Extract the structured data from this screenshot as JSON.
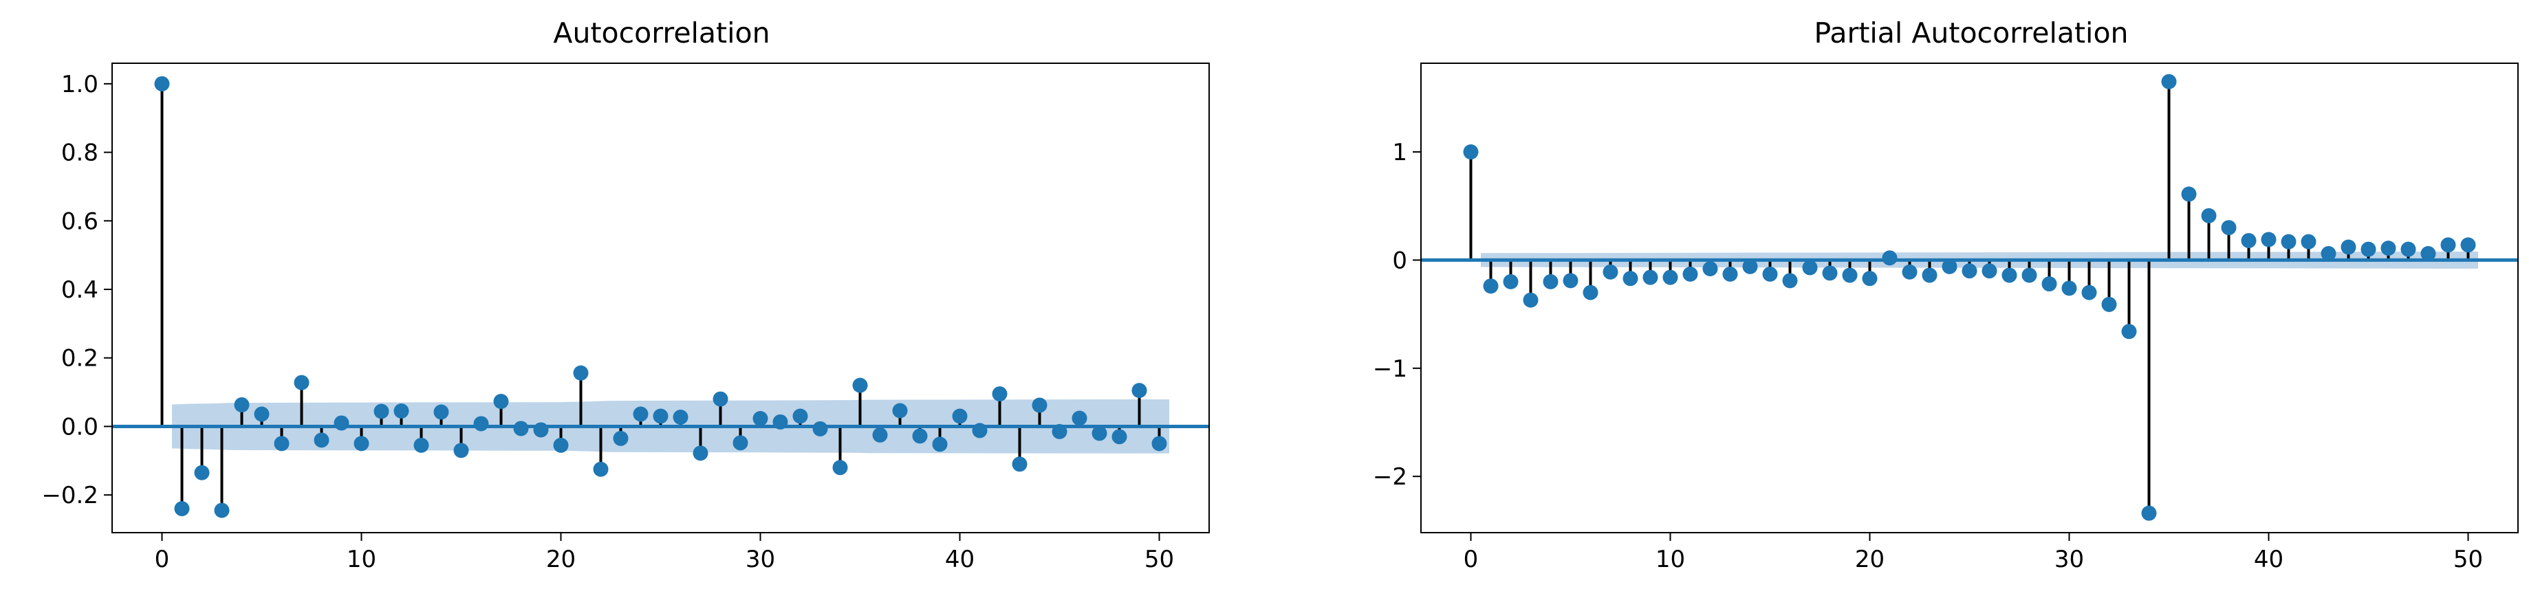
{
  "chart_data": [
    {
      "type": "stem",
      "title": "Autocorrelation",
      "xlabel": "",
      "ylabel": "",
      "xlim": [
        -2.5,
        52.5
      ],
      "ylim": [
        -0.31,
        1.06
      ],
      "xticks": [
        0,
        10,
        20,
        30,
        40,
        50
      ],
      "xtick_labels": [
        "0",
        "10",
        "20",
        "30",
        "40",
        "50"
      ],
      "yticks": [
        -0.2,
        0.0,
        0.2,
        0.4,
        0.6,
        0.8,
        1.0
      ],
      "ytick_labels": [
        "−0.2",
        "0.0",
        "0.2",
        "0.4",
        "0.6",
        "0.8",
        "1.0"
      ],
      "x": [
        0,
        1,
        2,
        3,
        4,
        5,
        6,
        7,
        8,
        9,
        10,
        11,
        12,
        13,
        14,
        15,
        16,
        17,
        18,
        19,
        20,
        21,
        22,
        23,
        24,
        25,
        26,
        27,
        28,
        29,
        30,
        31,
        32,
        33,
        34,
        35,
        36,
        37,
        38,
        39,
        40,
        41,
        42,
        43,
        44,
        45,
        46,
        47,
        48,
        49,
        50
      ],
      "values": [
        1.0,
        -0.24,
        -0.135,
        -0.245,
        0.063,
        0.036,
        -0.05,
        0.128,
        -0.04,
        0.01,
        -0.05,
        0.044,
        0.045,
        -0.055,
        0.042,
        -0.07,
        0.008,
        0.073,
        -0.006,
        -0.01,
        -0.055,
        0.156,
        -0.125,
        -0.035,
        0.036,
        0.03,
        0.027,
        -0.078,
        0.08,
        -0.048,
        0.023,
        0.013,
        0.03,
        -0.007,
        -0.12,
        0.12,
        -0.025,
        0.046,
        -0.028,
        -0.052,
        0.03,
        -0.012,
        0.095,
        -0.11,
        0.062,
        -0.015,
        0.024,
        -0.02,
        -0.03,
        0.105,
        -0.05
      ],
      "confidence_band": {
        "x": [
          0.5,
          1.5,
          2.5,
          3.5,
          10,
          20,
          21.5,
          22.5,
          30,
          34.5,
          35.5,
          50.5
        ],
        "upper": [
          0.064,
          0.066,
          0.067,
          0.069,
          0.07,
          0.071,
          0.073,
          0.075,
          0.076,
          0.077,
          0.078,
          0.079
        ],
        "lower": [
          -0.064,
          -0.066,
          -0.067,
          -0.069,
          -0.07,
          -0.071,
          -0.073,
          -0.075,
          -0.076,
          -0.077,
          -0.078,
          -0.079
        ]
      },
      "color": "#1f77b4",
      "stem_color": "#000000",
      "band_color": "#a7c6e2"
    },
    {
      "type": "stem",
      "title": "Partial Autocorrelation",
      "xlabel": "",
      "ylabel": "",
      "xlim": [
        -2.5,
        52.5
      ],
      "ylim": [
        -2.52,
        1.82
      ],
      "xticks": [
        0,
        10,
        20,
        30,
        40,
        50
      ],
      "xtick_labels": [
        "0",
        "10",
        "20",
        "30",
        "40",
        "50"
      ],
      "yticks": [
        -2,
        -1,
        0,
        1
      ],
      "ytick_labels": [
        "−2",
        "−1",
        "0",
        "1"
      ],
      "x": [
        0,
        1,
        2,
        3,
        4,
        5,
        6,
        7,
        8,
        9,
        10,
        11,
        12,
        13,
        14,
        15,
        16,
        17,
        18,
        19,
        20,
        21,
        22,
        23,
        24,
        25,
        26,
        27,
        28,
        29,
        30,
        31,
        32,
        33,
        34,
        35,
        36,
        37,
        38,
        39,
        40,
        41,
        42,
        43,
        44,
        45,
        46,
        47,
        48,
        49,
        50
      ],
      "values": [
        1.0,
        -0.24,
        -0.2,
        -0.37,
        -0.2,
        -0.19,
        -0.3,
        -0.11,
        -0.17,
        -0.16,
        -0.16,
        -0.13,
        -0.08,
        -0.13,
        -0.06,
        -0.13,
        -0.19,
        -0.07,
        -0.12,
        -0.14,
        -0.17,
        0.02,
        -0.11,
        -0.14,
        -0.06,
        -0.1,
        -0.1,
        -0.14,
        -0.14,
        -0.22,
        -0.26,
        -0.3,
        -0.41,
        -0.66,
        -2.34,
        1.65,
        0.61,
        0.41,
        0.3,
        0.18,
        0.19,
        0.17,
        0.17,
        0.06,
        0.12,
        0.1,
        0.11,
        0.1,
        0.06,
        0.14,
        0.14
      ],
      "confidence_band": {
        "x": [
          0.5,
          50.5
        ],
        "upper": [
          0.064,
          0.079
        ],
        "lower": [
          -0.064,
          -0.079
        ]
      },
      "color": "#1f77b4",
      "stem_color": "#000000",
      "band_color": "#a7c6e2"
    }
  ]
}
